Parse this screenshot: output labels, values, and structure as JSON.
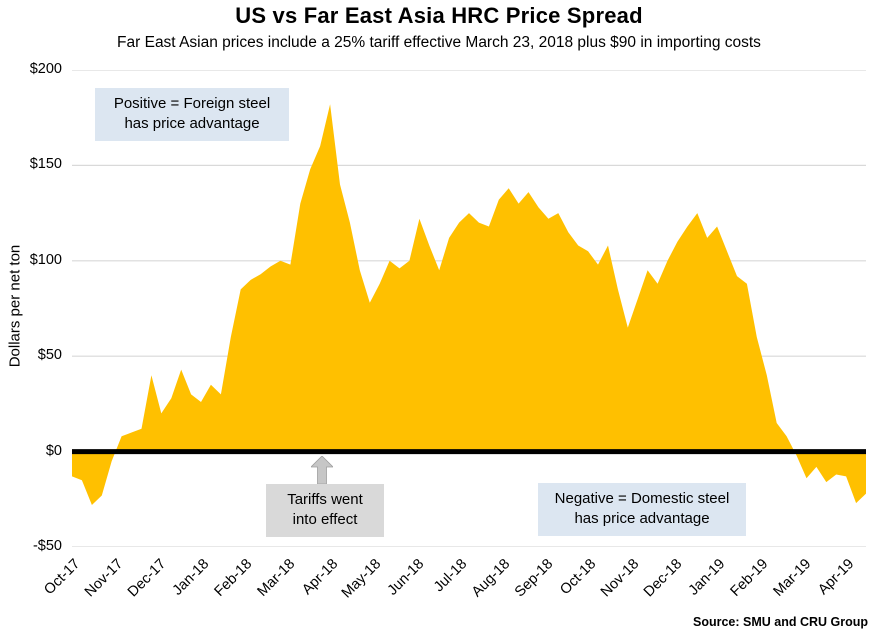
{
  "chart_data": {
    "type": "area",
    "title": "US vs Far East Asia HRC Price Spread",
    "subtitle": "Far East Asian prices include a 25% tariff effective March 23, 2018 plus $90 in importing costs",
    "ylabel": "Dollars per net ton",
    "xlabel": "",
    "ylim": [
      -50,
      200
    ],
    "grid": "horizontal",
    "legend": "none",
    "ytick_values": [
      200,
      150,
      100,
      50,
      0,
      -50
    ],
    "ytick_labels": [
      "$200",
      "$150",
      "$100",
      "$50",
      "$0",
      "-$50"
    ],
    "categories": [
      "Oct-17",
      "Nov-17",
      "Dec-17",
      "Jan-18",
      "Feb-18",
      "Mar-18",
      "Apr-18",
      "May-18",
      "Jun-18",
      "Jul-18",
      "Aug-18",
      "Sep-18",
      "Oct-18",
      "Nov-18",
      "Dec-18",
      "Jan-19",
      "Feb-19",
      "Mar-19",
      "Apr-19"
    ],
    "weeks_per_month": 4.3333,
    "series": [
      {
        "name": "US minus Far East Asia HRC price spread ($ per net ton)",
        "sampling": "weekly",
        "values": [
          -13,
          -15,
          -28,
          -23,
          -5,
          8,
          10,
          12,
          40,
          20,
          28,
          43,
          30,
          26,
          35,
          30,
          60,
          85,
          90,
          93,
          97,
          100,
          98,
          130,
          148,
          160,
          182,
          140,
          120,
          95,
          78,
          88,
          100,
          96,
          100,
          122,
          108,
          95,
          112,
          120,
          125,
          120,
          118,
          132,
          138,
          130,
          136,
          128,
          122,
          125,
          115,
          108,
          105,
          98,
          108,
          85,
          65,
          80,
          95,
          88,
          100,
          110,
          118,
          125,
          112,
          118,
          105,
          92,
          88,
          60,
          40,
          15,
          8,
          -2,
          -14,
          -8,
          -16,
          -12,
          -13,
          -27,
          -22
        ]
      }
    ],
    "annotations": {
      "positive": "Positive = Foreign steel has price advantage",
      "tariffs": "Tariffs went into effect",
      "negative": "Negative = Domestic steel has price advantage"
    },
    "source": "Source: SMU and CRU Group",
    "colors": {
      "area": "#FFC000",
      "zero_line": "#000000",
      "grid": "#D9D9D9",
      "annotation_blue_bg": "#DCE6F1",
      "annotation_gray_bg": "#D9D9D9",
      "arrow": "#C6C6C6",
      "arrow_edge": "#9E9E9E",
      "text": "#000000"
    }
  }
}
